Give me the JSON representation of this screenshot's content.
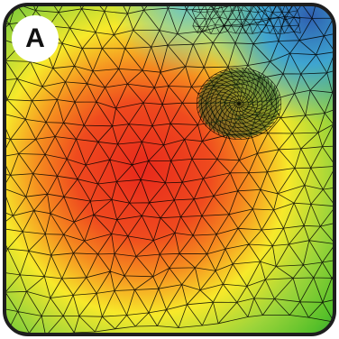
{
  "panel": {
    "label": "A",
    "colors": {
      "frame": "#1e1e1e",
      "mesh": "#000000",
      "hot": "#e8291c",
      "warm": "#f58a1f",
      "mid": "#f7e92a",
      "cool": "#57c02a",
      "cold": "#3aa2d8",
      "coldest": "#2f5fb0"
    }
  }
}
